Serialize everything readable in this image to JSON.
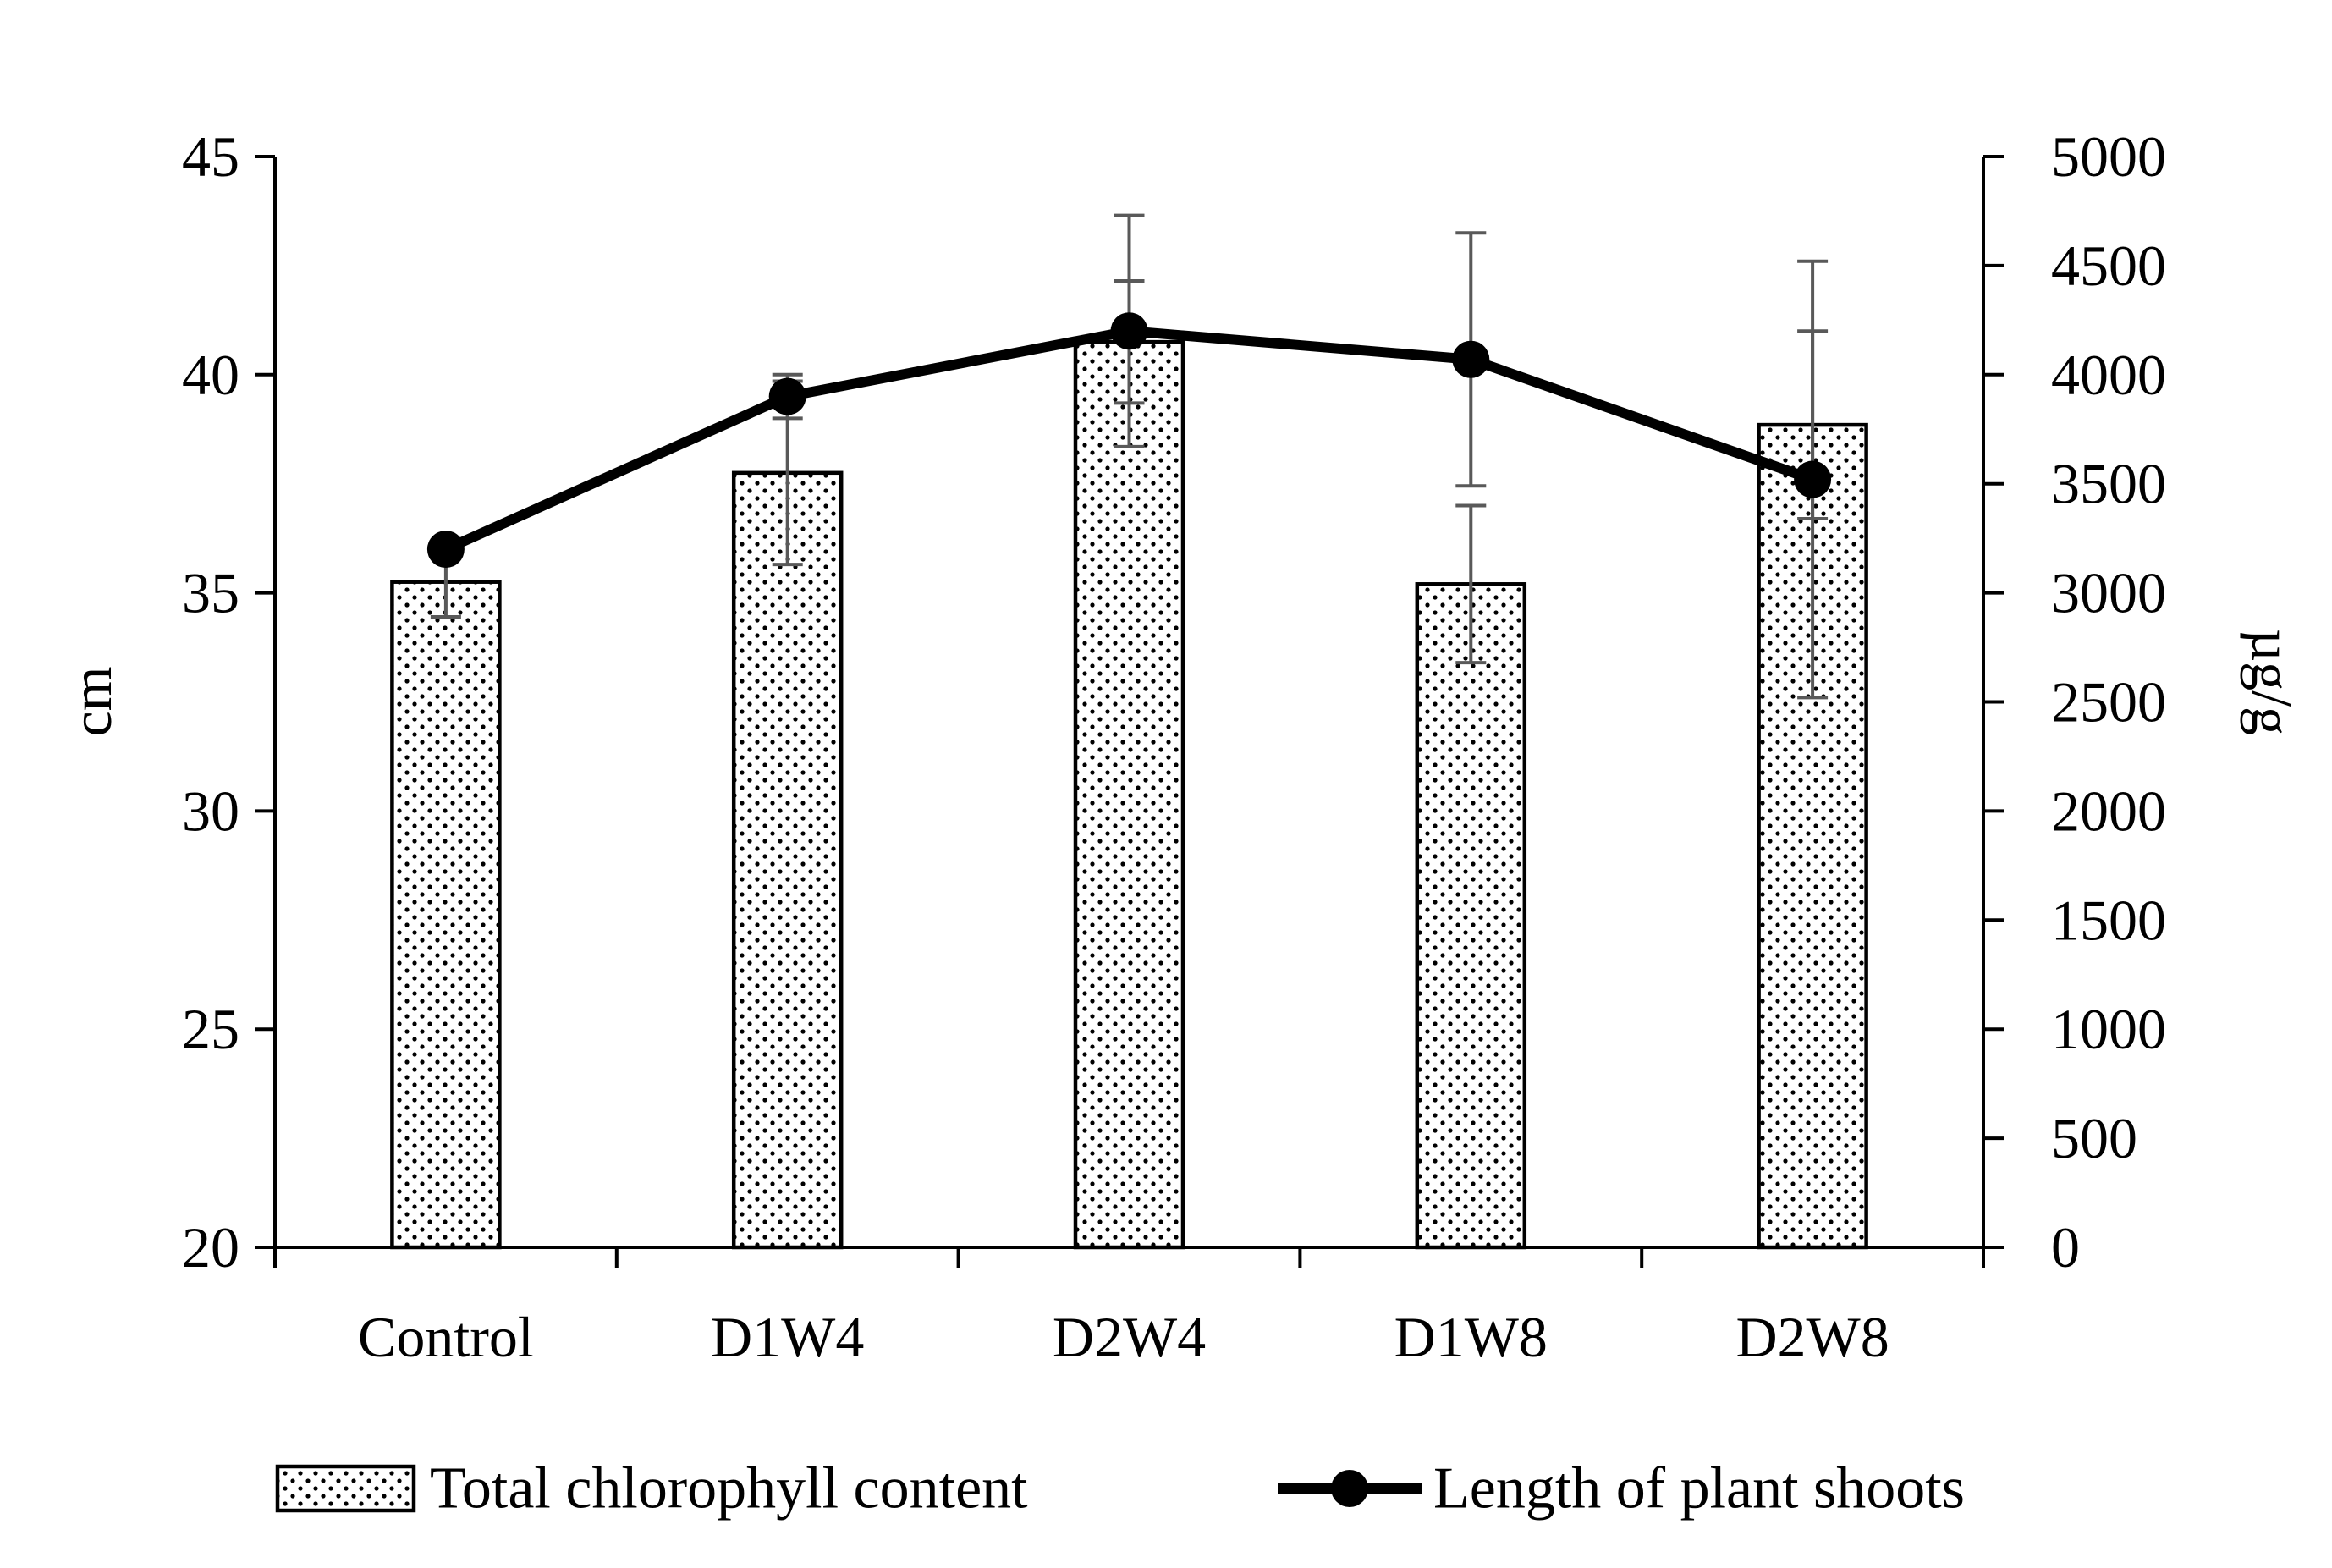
{
  "chart_data": {
    "type": "bar+line",
    "categories": [
      "Control",
      "D1W4",
      "D2W4",
      "D1W8",
      "D2W8"
    ],
    "left_axis": {
      "label": "cm",
      "ylim": [
        20,
        45
      ],
      "ticks": [
        "20",
        "25",
        "30",
        "35",
        "40",
        "45"
      ]
    },
    "right_axis": {
      "label": "µg/g",
      "ylim": [
        0,
        5000
      ],
      "ticks": [
        "0",
        "500",
        "1000",
        "1500",
        "2000",
        "2500",
        "3000",
        "3500",
        "4000",
        "4500",
        "5000"
      ]
    },
    "series": [
      {
        "name": "Total chlorophyll content",
        "kind": "bar",
        "axis": "right",
        "pattern": "dotted",
        "values": [
          3050,
          3550,
          4150,
          3040,
          3770
        ],
        "error": [
          160,
          420,
          280,
          360,
          430
        ]
      },
      {
        "name": "Length of plant shoots",
        "kind": "line",
        "axis": "left",
        "marker": "circle",
        "color": "#000000",
        "values": [
          36.0,
          39.5,
          41.0,
          40.35,
          37.6
        ],
        "error": [
          0,
          0.5,
          2.65,
          2.9,
          5.0
        ]
      }
    ],
    "legend": [
      "Total chlorophyll content",
      "Length of plant shoots"
    ],
    "legend_position": "bottom",
    "grid": false,
    "error_bar_color": "#595959"
  }
}
